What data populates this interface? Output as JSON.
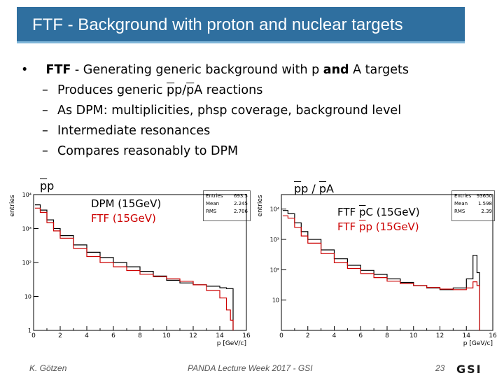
{
  "slide": {
    "title": "FTF - Background with proton and nuclear targets",
    "bullet": {
      "marker": "•",
      "lead": "FTF",
      "text_a": " - Generating generic background with p ",
      "and": "and",
      "text_b": " A targets"
    },
    "subitems": [
      {
        "dash": "–",
        "pre": "Produces generic ",
        "pbar1": "p",
        "mid": "p/",
        "pbar2": "p",
        "post": "A reactions"
      },
      {
        "dash": "–",
        "text": "As DPM: multiplicities, phsp coverage, background level"
      },
      {
        "dash": "–",
        "text": "Intermediate resonances"
      },
      {
        "dash": "–",
        "text": "Compares reasonably to DPM"
      }
    ],
    "footer": {
      "author": "K. Götzen",
      "event": "PANDA Lecture Week 2017 - GSI",
      "page": "23"
    },
    "logo": "GSI"
  },
  "plots": [
    {
      "label": {
        "pbar": "p",
        "rest": "p"
      },
      "legend": [
        {
          "text": "DPM (15GeV)",
          "color": "#000000"
        },
        {
          "text": "FTF (15GeV)",
          "color": "#cc0000"
        }
      ],
      "stats": [
        {
          "k": "Entries",
          "v": "693.5"
        },
        {
          "k": "Mean",
          "v": "2.245"
        },
        {
          "k": "RMS",
          "v": "2.706"
        }
      ]
    },
    {
      "label": {
        "pbar1": "p",
        "mid": "p / ",
        "pbar2": "p",
        "rest": "A"
      },
      "legend": [
        {
          "pre": "FTF ",
          "pbar": "p",
          "post": "C (15GeV)",
          "color": "#000000"
        },
        {
          "pre": "FTF ",
          "pbar": "p",
          "post": "p (15GeV)",
          "color": "#cc0000"
        }
      ],
      "stats": [
        {
          "k": "Entries",
          "v": "93650"
        },
        {
          "k": "Mean",
          "v": "1.598"
        },
        {
          "k": "RMS",
          "v": "2.39"
        }
      ]
    }
  ],
  "chart_data": [
    {
      "type": "line",
      "xlabel": "p [GeV/c]",
      "ylabel": "entries",
      "xlim": [
        0,
        16
      ],
      "ylim": [
        1,
        10000
      ],
      "log_y": true,
      "xticks": [
        "0",
        "2",
        "4",
        "6",
        "8",
        "10",
        "12",
        "14",
        "16"
      ],
      "yticks": [
        "1",
        "10",
        "10²",
        "10³",
        "10⁴"
      ],
      "series": [
        {
          "name": "DPM (15GeV)",
          "color": "#000000",
          "x": [
            0.1,
            0.5,
            1,
            1.5,
            2,
            3,
            4,
            5,
            6,
            7,
            8,
            9,
            10,
            11,
            12,
            13,
            14,
            14.5,
            14.8,
            15
          ],
          "y": [
            5000,
            3500,
            1800,
            1000,
            620,
            330,
            200,
            140,
            100,
            75,
            55,
            40,
            30,
            25,
            22,
            20,
            18,
            17,
            17,
            1
          ]
        },
        {
          "name": "FTF (15GeV)",
          "color": "#cc0000",
          "x": [
            0.1,
            0.5,
            1,
            1.5,
            2,
            3,
            4,
            5,
            6,
            7,
            8,
            9,
            10,
            11,
            12,
            13,
            14,
            14.5,
            14.8,
            15
          ],
          "y": [
            4000,
            3000,
            1500,
            850,
            520,
            260,
            150,
            100,
            75,
            58,
            45,
            38,
            33,
            28,
            22,
            15,
            9,
            4,
            2,
            1
          ]
        }
      ]
    },
    {
      "type": "line",
      "xlabel": "p [GeV/c]",
      "ylabel": "entries",
      "xlim": [
        0,
        16
      ],
      "ylim": [
        1,
        30000
      ],
      "log_y": true,
      "xticks": [
        "0",
        "2",
        "4",
        "6",
        "8",
        "10",
        "12",
        "14",
        "16"
      ],
      "yticks": [
        "10",
        "10²",
        "10³",
        "10⁴"
      ],
      "series": [
        {
          "name": "FTF pC (15GeV)",
          "color": "#000000",
          "x": [
            0.1,
            0.5,
            1,
            1.5,
            2,
            3,
            4,
            5,
            6,
            7,
            8,
            9,
            10,
            11,
            12,
            13,
            14,
            14.5,
            14.8,
            15
          ],
          "y": [
            9000,
            7000,
            3500,
            1800,
            1000,
            450,
            230,
            140,
            95,
            70,
            50,
            38,
            30,
            25,
            22,
            25,
            50,
            300,
            80,
            1
          ]
        },
        {
          "name": "FTF pp (15GeV)",
          "color": "#cc0000",
          "x": [
            0.1,
            0.5,
            1,
            1.5,
            2,
            3,
            4,
            5,
            6,
            7,
            8,
            9,
            10,
            11,
            12,
            13,
            14,
            14.5,
            14.8,
            15
          ],
          "y": [
            6000,
            5000,
            2500,
            1300,
            750,
            340,
            170,
            110,
            75,
            55,
            42,
            35,
            30,
            26,
            23,
            22,
            25,
            40,
            30,
            1
          ]
        }
      ]
    }
  ]
}
